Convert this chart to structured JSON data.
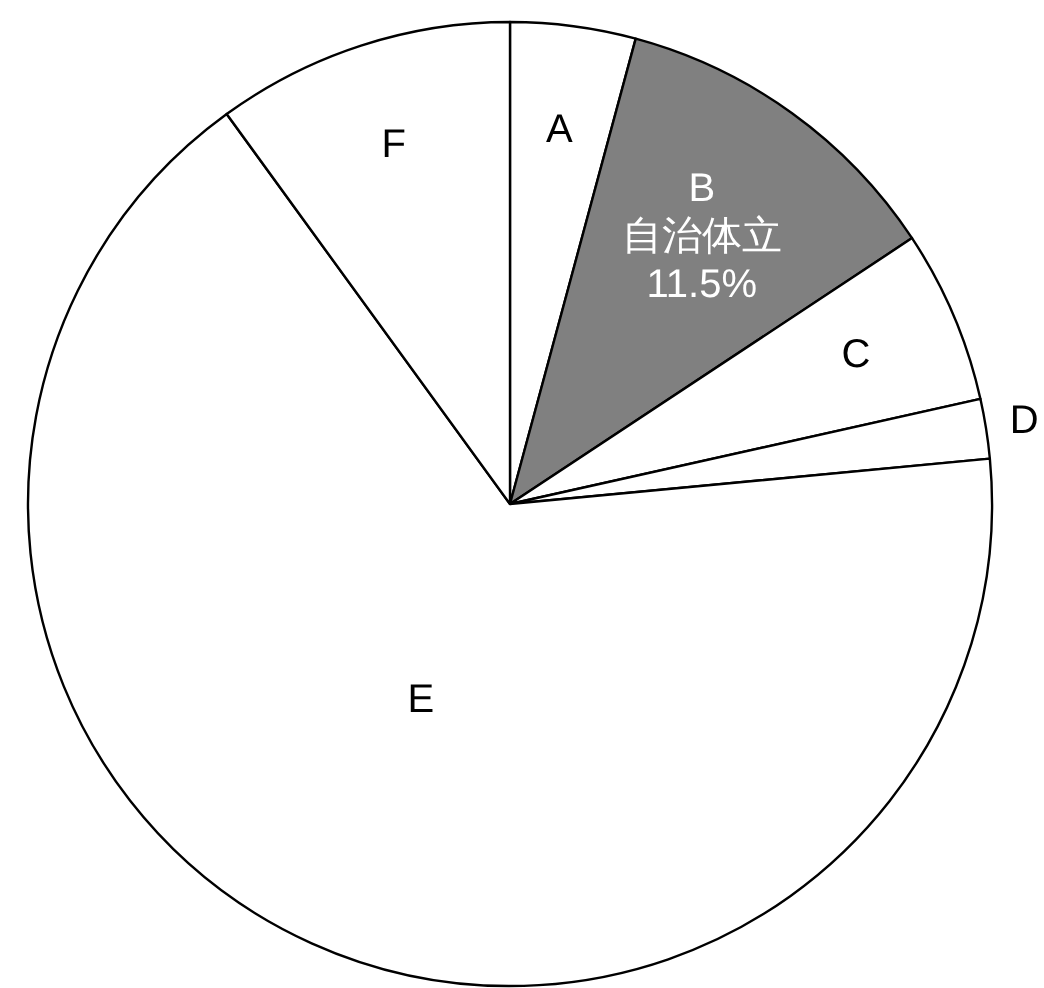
{
  "chart_data": {
    "type": "pie",
    "categories": [
      "A",
      "B",
      "C",
      "D",
      "E",
      "F"
    ],
    "values": [
      4.2,
      11.5,
      5.8,
      2,
      66.5,
      10
    ],
    "colors": [
      "#ffffff",
      "#808080",
      "#ffffff",
      "#ffffff",
      "#ffffff",
      "#ffffff"
    ],
    "value_labels": [
      null,
      "11.5%",
      null,
      null,
      null,
      null
    ],
    "annotations": [
      {
        "text": "自治体立",
        "x": "B"
      }
    ]
  }
}
